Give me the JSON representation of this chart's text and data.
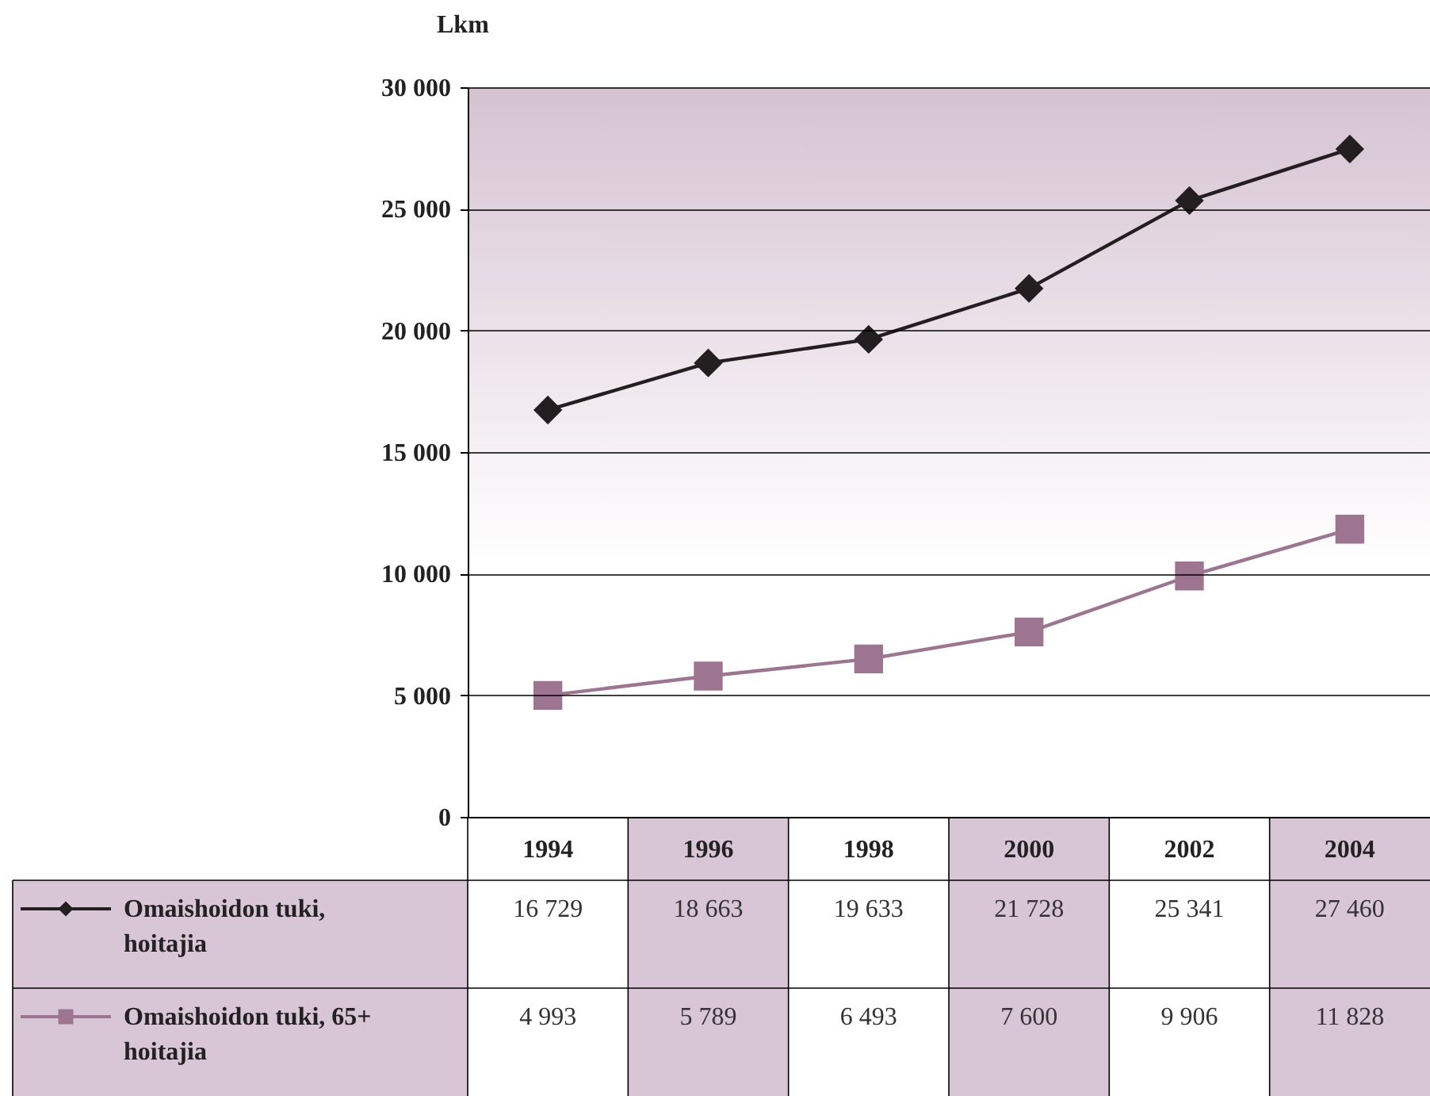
{
  "chart_data": {
    "type": "line",
    "ylabel": "Lkm",
    "categories": [
      "1994",
      "1996",
      "1998",
      "2000",
      "2002",
      "2004"
    ],
    "ylim": [
      0,
      30000
    ],
    "yticks": [
      {
        "value": 0,
        "label": "0"
      },
      {
        "value": 5000,
        "label": "5 000"
      },
      {
        "value": 10000,
        "label": "10 000"
      },
      {
        "value": 15000,
        "label": "15 000"
      },
      {
        "value": 20000,
        "label": "20 000"
      },
      {
        "value": 25000,
        "label": "25 000"
      },
      {
        "value": 30000,
        "label": "30 000"
      }
    ],
    "grid": "y",
    "legend": "bottom left",
    "line_style": "solid",
    "series": [
      {
        "name": "Omaishoidon tuki, hoitajia",
        "color": "#231f20",
        "marker": "diamond",
        "values": [
          16729,
          18663,
          19633,
          21728,
          25341,
          27460
        ],
        "value_labels": [
          "16 729",
          "18 663",
          "19 633",
          "21 728",
          "25 341",
          "27 460"
        ]
      },
      {
        "name": "Omaishoidon tuki, 65+ hoitajia",
        "color": "#9e7591",
        "marker": "square",
        "values": [
          4993,
          5789,
          6493,
          7600,
          9906,
          11828
        ],
        "value_labels": [
          "4 993",
          "5 789",
          "6 493",
          "7 600",
          "9 906",
          "11 828"
        ]
      }
    ]
  }
}
